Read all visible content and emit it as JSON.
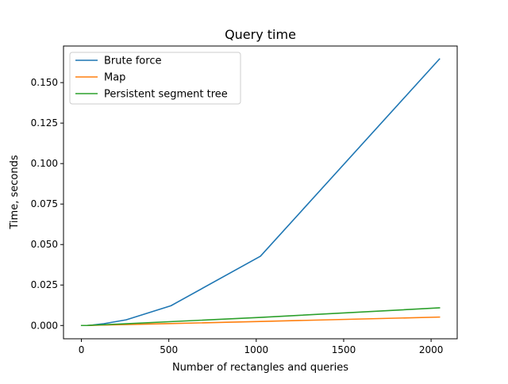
{
  "chart_data": {
    "type": "line",
    "title": "Query time",
    "xlabel": "Number of rectangles and queries",
    "ylabel": "Time, seconds",
    "xlim": [
      -102.35,
      2149.35
    ],
    "ylim": [
      -0.0082,
      0.1726
    ],
    "xticks": [
      0,
      500,
      1000,
      1500,
      2000
    ],
    "xtick_labels": [
      "0",
      "500",
      "1000",
      "1500",
      "2000"
    ],
    "yticks": [
      0.0,
      0.025,
      0.05,
      0.075,
      0.1,
      0.125,
      0.15
    ],
    "ytick_labels": [
      "0.000",
      "0.025",
      "0.050",
      "0.075",
      "0.100",
      "0.125",
      "0.150"
    ],
    "grid": false,
    "legend_position": "upper-left",
    "series": [
      {
        "name": "Brute force",
        "color": "#1f77b4",
        "x": [
          1,
          2,
          4,
          8,
          16,
          32,
          64,
          128,
          256,
          512,
          1024,
          2048
        ],
        "y": [
          0.0,
          0.0,
          0.0,
          0.0,
          0.0,
          0.0,
          0.0003,
          0.0011,
          0.0035,
          0.0122,
          0.0428,
          0.1646
        ]
      },
      {
        "name": "Map",
        "color": "#ff7f0e",
        "x": [
          1,
          2,
          4,
          8,
          16,
          32,
          64,
          128,
          256,
          512,
          1024,
          2048
        ],
        "y": [
          0.0,
          0.0,
          0.0,
          0.0,
          0.0,
          0.0,
          0.0001,
          0.0003,
          0.0006,
          0.0012,
          0.0025,
          0.0052
        ]
      },
      {
        "name": "Persistent segment tree",
        "color": "#2ca02c",
        "x": [
          1,
          2,
          4,
          8,
          16,
          32,
          64,
          128,
          256,
          512,
          1024,
          2048
        ],
        "y": [
          0.0,
          0.0,
          0.0,
          0.0,
          0.0,
          0.0,
          0.0002,
          0.0005,
          0.0011,
          0.0024,
          0.005,
          0.0109
        ]
      }
    ]
  }
}
